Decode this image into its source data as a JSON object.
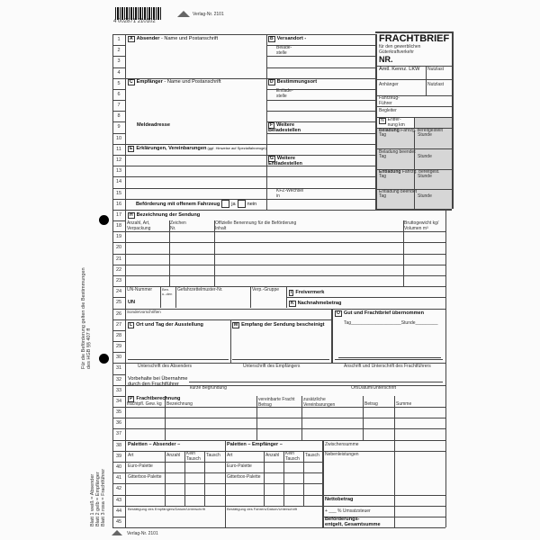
{
  "header": {
    "barcode_number": "4 002871 210102",
    "publisher_no": "Verlag-Nr. 2101"
  },
  "title_box": {
    "title": "FRACHTBRIEF",
    "subtitle": "für den gewerblichen\nGüterkraftverkehr",
    "nr": "NR.",
    "amtl": "Amtl. Kennz. LKW",
    "nutzlast1": "Nutzlast",
    "anhaenger": "Anhänger",
    "nutzlast2": "Nutzlast",
    "fahrer": "Fahrzeug-\nFührer",
    "begleiter": "Begleiter",
    "n_key": "N",
    "entfernung": "Entfer-\nnung km",
    "beladung_bold": "Beladung",
    "beladung_rest": " Fahrzg. bereitgestellt",
    "tag1": "Tag",
    "stunde1": "Stunde",
    "beladung_beendet": "Beladung beendet",
    "tag2": "Tag",
    "stunde2": "Stunde",
    "entladung_bold": "Entladung",
    "entladung_rest": " Fahrzg. bereitgest.",
    "tag3": "Tag",
    "stunde3": "Stunde",
    "entladung_beendet": "Entladung beendet",
    "tag4": "Tag",
    "stunde4": "Stunde"
  },
  "sections": {
    "A": {
      "key": "A",
      "label": "Absender",
      "rest": " - Name und Postanschrift"
    },
    "B": {
      "key": "B",
      "label": "Versandort -",
      "sub": "Belade-\nstelle"
    },
    "C": {
      "key": "C",
      "label": "Empfänger",
      "rest": " - Name und Postanschrift",
      "melde": "Meldeadresse"
    },
    "D": {
      "key": "D",
      "label": "Bestimmungsort",
      "sub": "Entlade-\nstelle"
    },
    "F": {
      "key": "F",
      "label": "Weitere\nBeladestellen"
    },
    "E": {
      "key": "E",
      "label": "Erklärungen, Vereinbarungen",
      "rest": " (ggf. Hinweise auf Spezialfahrzeuge)"
    },
    "G": {
      "key": "G",
      "label": "Weitere\nEntladestellen"
    },
    "kfz": "KFZ-Wechsel\nin",
    "offen": {
      "label": "Beförderung mit offenem Fahrzeug",
      "ja": "ja",
      "nein": "nein"
    },
    "H": {
      "key": "H",
      "label": "Bezeichnung der Sendung",
      "cols": [
        "Anzahl, Art,\nVerpackung",
        "Zeichen\nNr.",
        "Offizielle Benennung für die Beförderung\nInhalt",
        "Bruttogewicht kg/\nVolumen m³"
      ]
    },
    "un": {
      "un_nummer": "UN-Nummer",
      "ben": "Ben.\nu.-den",
      "gefahr": "Gefahrzettelmuster-Nr.",
      "verp": "Verp.-Gruppe",
      "un": "UN"
    },
    "I": {
      "key": "I",
      "label": "Freivermerk"
    },
    "K": {
      "key": "K",
      "label": "Nachnahmebetrag"
    },
    "sonder": "Sondervorschriften",
    "O": {
      "key": "O",
      "label": "Gut und Frachtbrief übernommen",
      "tag": "Tag",
      "stunde": "Stunde",
      "sig": "Anschrift und Unterschrift des Frachtführers"
    },
    "L": {
      "key": "L",
      "label": "Ort und Tag der Ausstellung",
      "sig": "Unterschrift des Absenders"
    },
    "M": {
      "key": "M",
      "label": "Empfang der Sendung bescheinigt",
      "sig": "Unterschrift des Empfängers"
    },
    "vorbehalte": {
      "label": "Vorbehalte bei Übernahme\ndurch den Frachtführer",
      "grund": "kurze Begründung",
      "ort": "Ort/Datum/Unterschrift"
    },
    "P": {
      "key": "P",
      "label": "Frachtberechnung",
      "cols": [
        "frachtpfl. Gew. kg",
        "Bezeichnung",
        "vereinbarte Fracht\nBetrag",
        "zusätzliche\nVereinbarungen",
        "Betrag",
        "Summe"
      ]
    },
    "pal_abs": {
      "label": "Paletten – Absender –",
      "cols": [
        "Art",
        "Anzahl",
        "Kein\nTausch",
        "Tausch"
      ],
      "rows": [
        "Euro-Palette",
        "Gitterbox-Palette"
      ],
      "confirm": "Bestätigung des Empfängers/Datum/Unterschrift"
    },
    "pal_emp": {
      "label": "Paletten – Empfänger –",
      "cols": [
        "Art",
        "Anzahl",
        "Kein\nTausch",
        "Tausch"
      ],
      "rows": [
        "Euro-Palette",
        "Gitterbox-Palette"
      ],
      "confirm": "Bestätigung des Fahrers/Datum/Unterschrift"
    },
    "totals": {
      "zwischen": "Zwischensumme",
      "neben": "Nebenleistungen",
      "netto": "Nettobetrag",
      "ust": "+ ___ % Umsatzsteuer",
      "gesamt": "Beförderungs-\nentgelt, Gesamtsumme"
    }
  },
  "margin": {
    "hgb": "Für die Beförderung gelten die Bestimmungen\ndes HGB §§ 407 ff",
    "blatt": "Blatt 1 weiß = Absender\nBlatt 2 gelb = Empfänger\nBlatt 3 rosa = Frachtführer"
  },
  "row_numbers": [
    "1",
    "2",
    "3",
    "4",
    "5",
    "6",
    "7",
    "8",
    "9",
    "10",
    "11",
    "12",
    "13",
    "14",
    "15",
    "16",
    "17",
    "18",
    "19",
    "20",
    "21",
    "22",
    "23",
    "24",
    "25",
    "26",
    "27",
    "28",
    "29",
    "30",
    "31",
    "32",
    "33",
    "34",
    "35",
    "36",
    "37",
    "38",
    "39",
    "40",
    "41",
    "42",
    "43",
    "44",
    "45"
  ]
}
